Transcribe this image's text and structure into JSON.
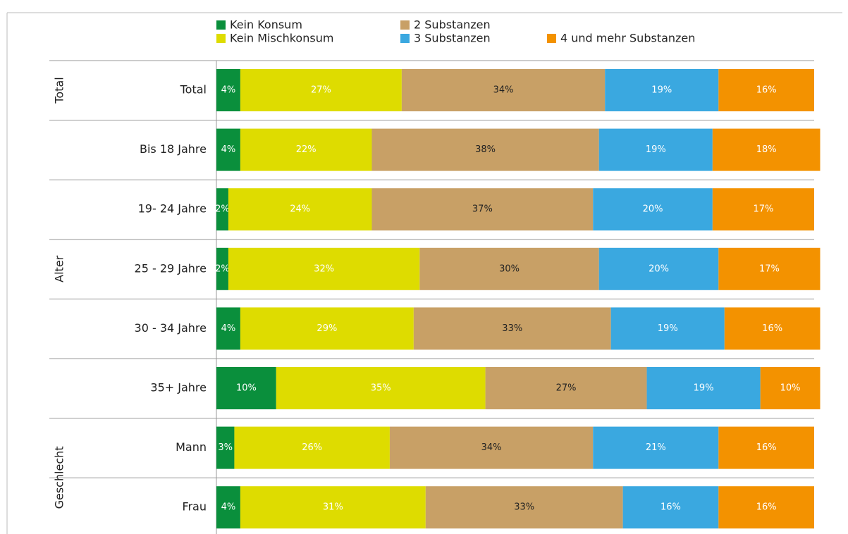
{
  "chart_data": {
    "type": "stacked-bar-horizontal",
    "categories": [
      "Total",
      "Bis 18 Jahre",
      "19- 24 Jahre",
      "25 - 29 Jahre",
      "30 - 34 Jahre",
      "35+ Jahre",
      "Mann",
      "Frau"
    ],
    "groups": [
      {
        "name": "Total",
        "count": 1
      },
      {
        "name": "Alter",
        "count": 5
      },
      {
        "name": "Geschlecht",
        "count": 2
      }
    ],
    "xlim": [
      0,
      100
    ],
    "series": [
      {
        "name": "Kein Konsum",
        "color": "#0a8f3c",
        "values": [
          4,
          4,
          2,
          2,
          4,
          10,
          3,
          4
        ],
        "value_labels": [
          "4%",
          "4%",
          "2%",
          "2%",
          "4%",
          "10%",
          "3%",
          "4%"
        ]
      },
      {
        "name": "Kein Mischkonsum",
        "color": "#dedc00",
        "values": [
          27,
          22,
          24,
          32,
          29,
          35,
          26,
          31
        ],
        "value_labels": [
          "27%",
          "22%",
          "24%",
          "32%",
          "29%",
          "35%",
          "26%",
          "31%"
        ]
      },
      {
        "name": "2 Substanzen",
        "color": "#c8a066",
        "values": [
          34,
          38,
          37,
          30,
          33,
          27,
          34,
          33
        ],
        "value_labels": [
          "34%",
          "38%",
          "37%",
          "30%",
          "33%",
          "27%",
          "34%",
          "33%"
        ]
      },
      {
        "name": "3 Substanzen",
        "color": "#3aa8e0",
        "values": [
          19,
          19,
          20,
          20,
          19,
          19,
          21,
          16
        ],
        "value_labels": [
          "19%",
          "19%",
          "20%",
          "20%",
          "19%",
          "19%",
          "21%",
          "16%"
        ]
      },
      {
        "name": "4 und mehr Substanzen",
        "color": "#f39200",
        "values": [
          16,
          18,
          17,
          17,
          16,
          10,
          16,
          16
        ],
        "value_labels": [
          "16%",
          "18%",
          "17%",
          "17%",
          "16%",
          "10%",
          "16%",
          "16%"
        ]
      }
    ]
  }
}
